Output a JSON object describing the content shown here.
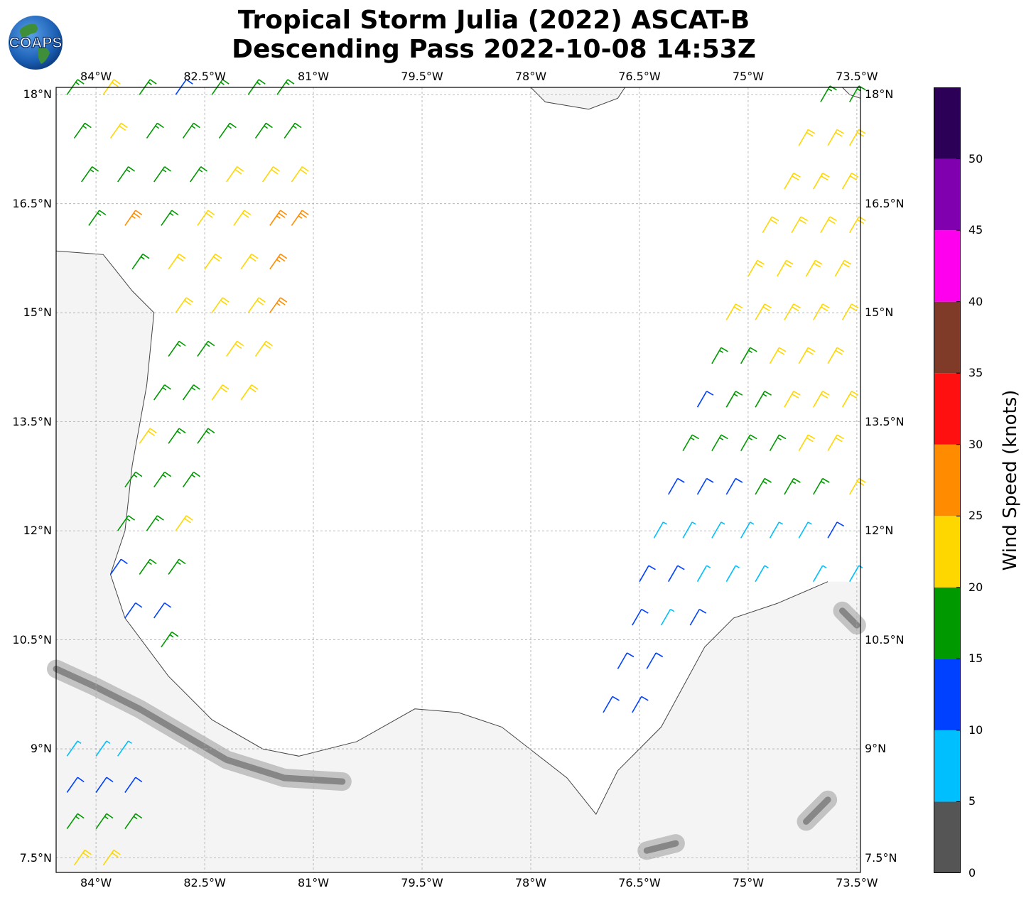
{
  "title_line1": "Tropical Storm Julia (2022) ASCAT-B",
  "title_line2": "Descending Pass 2022-10-08 14:53Z",
  "logo_text": "COAPS",
  "map": {
    "lon_range": [
      -84.55,
      -73.45
    ],
    "lat_range": [
      7.3,
      18.1
    ],
    "lon_ticks": [
      "84°W",
      "82.5°W",
      "81°W",
      "79.5°W",
      "78°W",
      "76.5°W",
      "75°W",
      "73.5°W"
    ],
    "lon_values": [
      -84,
      -82.5,
      -81,
      -79.5,
      -78,
      -76.5,
      -75,
      -73.5
    ],
    "lat_ticks": [
      "18°N",
      "16.5°N",
      "15°N",
      "13.5°N",
      "12°N",
      "10.5°N",
      "9°N",
      "7.5°N"
    ],
    "lat_values": [
      18,
      16.5,
      15,
      13.5,
      12,
      10.5,
      9,
      7.5
    ],
    "gridlines": true
  },
  "colorbar": {
    "label": "Wind Speed (knots)",
    "ticks": [
      "0",
      "5",
      "10",
      "15",
      "20",
      "25",
      "30",
      "35",
      "40",
      "45",
      "50"
    ],
    "tick_values": [
      0,
      5,
      10,
      15,
      20,
      25,
      30,
      35,
      40,
      45,
      50
    ],
    "max": 55,
    "colors": [
      "#555555",
      "#00bfff",
      "#0040ff",
      "#009900",
      "#ffd700",
      "#ff8c00",
      "#ff1010",
      "#7f3b28",
      "#ff00ee",
      "#8000b0",
      "#2d0057"
    ]
  },
  "wind_swaths": [
    {
      "name": "west-swath",
      "points": [
        [
          -84.4,
          18.0,
          18
        ],
        [
          -83.9,
          18.0,
          21
        ],
        [
          -83.4,
          18.0,
          16
        ],
        [
          -82.9,
          18.0,
          12
        ],
        [
          -82.4,
          18.0,
          17
        ],
        [
          -81.9,
          18.0,
          16
        ],
        [
          -81.5,
          18.0,
          17
        ],
        [
          -84.3,
          17.4,
          17
        ],
        [
          -83.8,
          17.4,
          22
        ],
        [
          -83.3,
          17.4,
          17
        ],
        [
          -82.8,
          17.4,
          17
        ],
        [
          -82.3,
          17.4,
          17
        ],
        [
          -81.8,
          17.4,
          16
        ],
        [
          -81.4,
          17.4,
          17
        ],
        [
          -84.2,
          16.8,
          18
        ],
        [
          -83.7,
          16.8,
          17
        ],
        [
          -83.2,
          16.8,
          16
        ],
        [
          -82.7,
          16.8,
          17
        ],
        [
          -82.2,
          16.8,
          21
        ],
        [
          -81.7,
          16.8,
          22
        ],
        [
          -81.3,
          16.8,
          21
        ],
        [
          -84.1,
          16.2,
          16
        ],
        [
          -83.6,
          16.2,
          27
        ],
        [
          -83.1,
          16.2,
          17
        ],
        [
          -82.6,
          16.2,
          21
        ],
        [
          -82.1,
          16.2,
          22
        ],
        [
          -81.6,
          16.2,
          26
        ],
        [
          -81.3,
          16.2,
          27
        ],
        [
          -83.5,
          15.6,
          17
        ],
        [
          -83.0,
          15.6,
          21
        ],
        [
          -82.5,
          15.6,
          22
        ],
        [
          -82.0,
          15.6,
          23
        ],
        [
          -81.6,
          15.6,
          27
        ],
        [
          -82.9,
          15.0,
          22
        ],
        [
          -82.4,
          15.0,
          22
        ],
        [
          -81.9,
          15.0,
          23
        ],
        [
          -81.6,
          15.0,
          26
        ],
        [
          -83.0,
          14.4,
          17
        ],
        [
          -82.6,
          14.4,
          16
        ],
        [
          -82.2,
          14.4,
          22
        ],
        [
          -81.8,
          14.4,
          22
        ],
        [
          -83.2,
          13.8,
          17
        ],
        [
          -82.8,
          13.8,
          17
        ],
        [
          -82.4,
          13.8,
          21
        ],
        [
          -82.0,
          13.8,
          22
        ],
        [
          -83.4,
          13.2,
          22
        ],
        [
          -83.0,
          13.2,
          17
        ],
        [
          -82.6,
          13.2,
          17
        ],
        [
          -83.6,
          12.6,
          17
        ],
        [
          -83.2,
          12.6,
          16
        ],
        [
          -82.8,
          12.6,
          17
        ],
        [
          -83.7,
          12.0,
          16
        ],
        [
          -83.3,
          12.0,
          17
        ],
        [
          -82.9,
          12.0,
          21
        ],
        [
          -83.8,
          11.4,
          12
        ],
        [
          -83.4,
          11.4,
          16
        ],
        [
          -83.0,
          11.4,
          17
        ],
        [
          -83.6,
          10.8,
          12
        ],
        [
          -83.2,
          10.8,
          12
        ],
        [
          -83.1,
          10.4,
          17
        ]
      ]
    },
    {
      "name": "east-swath",
      "points": [
        [
          -74.0,
          17.9,
          16
        ],
        [
          -73.6,
          17.9,
          17
        ],
        [
          -74.3,
          17.3,
          22
        ],
        [
          -73.9,
          17.3,
          22
        ],
        [
          -73.6,
          17.3,
          21
        ],
        [
          -74.5,
          16.7,
          22
        ],
        [
          -74.1,
          16.7,
          22
        ],
        [
          -73.7,
          16.7,
          22
        ],
        [
          -74.8,
          16.1,
          22
        ],
        [
          -74.4,
          16.1,
          23
        ],
        [
          -74.0,
          16.1,
          22
        ],
        [
          -73.6,
          16.1,
          21
        ],
        [
          -75.0,
          15.5,
          22
        ],
        [
          -74.6,
          15.5,
          22
        ],
        [
          -74.2,
          15.5,
          23
        ],
        [
          -73.8,
          15.5,
          22
        ],
        [
          -75.3,
          14.9,
          22
        ],
        [
          -74.9,
          14.9,
          22
        ],
        [
          -74.5,
          14.9,
          21
        ],
        [
          -74.1,
          14.9,
          22
        ],
        [
          -73.7,
          14.9,
          22
        ],
        [
          -75.5,
          14.3,
          17
        ],
        [
          -75.1,
          14.3,
          17
        ],
        [
          -74.7,
          14.3,
          22
        ],
        [
          -74.3,
          14.3,
          22
        ],
        [
          -73.9,
          14.3,
          21
        ],
        [
          -75.7,
          13.7,
          12
        ],
        [
          -75.3,
          13.7,
          17
        ],
        [
          -74.9,
          13.7,
          17
        ],
        [
          -74.5,
          13.7,
          22
        ],
        [
          -74.1,
          13.7,
          22
        ],
        [
          -73.7,
          13.7,
          22
        ],
        [
          -75.9,
          13.1,
          17
        ],
        [
          -75.5,
          13.1,
          17
        ],
        [
          -75.1,
          13.1,
          17
        ],
        [
          -74.7,
          13.1,
          17
        ],
        [
          -74.3,
          13.1,
          22
        ],
        [
          -73.9,
          13.1,
          22
        ],
        [
          -76.1,
          12.5,
          12
        ],
        [
          -75.7,
          12.5,
          12
        ],
        [
          -75.3,
          12.5,
          12
        ],
        [
          -74.9,
          12.5,
          16
        ],
        [
          -74.5,
          12.5,
          17
        ],
        [
          -74.1,
          12.5,
          17
        ],
        [
          -73.6,
          12.5,
          21
        ],
        [
          -76.3,
          11.9,
          7
        ],
        [
          -75.9,
          11.9,
          7
        ],
        [
          -75.5,
          11.9,
          8
        ],
        [
          -75.1,
          11.9,
          7
        ],
        [
          -74.7,
          11.9,
          9
        ],
        [
          -74.3,
          11.9,
          7
        ],
        [
          -73.9,
          11.9,
          11
        ],
        [
          -76.5,
          11.3,
          12
        ],
        [
          -76.1,
          11.3,
          12
        ],
        [
          -75.7,
          11.3,
          7
        ],
        [
          -75.3,
          11.3,
          8
        ],
        [
          -74.9,
          11.3,
          8
        ],
        [
          -74.1,
          11.3,
          8
        ],
        [
          -73.6,
          11.3,
          7
        ],
        [
          -76.6,
          10.7,
          12
        ],
        [
          -76.2,
          10.7,
          8
        ],
        [
          -75.8,
          10.7,
          12
        ],
        [
          -76.8,
          10.1,
          12
        ],
        [
          -76.4,
          10.1,
          12
        ],
        [
          -77.0,
          9.5,
          12
        ],
        [
          -76.6,
          9.5,
          12
        ]
      ]
    },
    {
      "name": "southwest-swath",
      "points": [
        [
          -84.4,
          8.9,
          7
        ],
        [
          -84.0,
          8.9,
          7
        ],
        [
          -83.7,
          8.9,
          8
        ],
        [
          -84.4,
          8.4,
          11
        ],
        [
          -84.0,
          8.4,
          11
        ],
        [
          -83.6,
          8.4,
          12
        ],
        [
          -84.4,
          7.9,
          17
        ],
        [
          -84.0,
          7.9,
          17
        ],
        [
          -83.6,
          7.9,
          16
        ],
        [
          -84.3,
          7.4,
          21
        ],
        [
          -83.9,
          7.4,
          22
        ]
      ]
    }
  ]
}
